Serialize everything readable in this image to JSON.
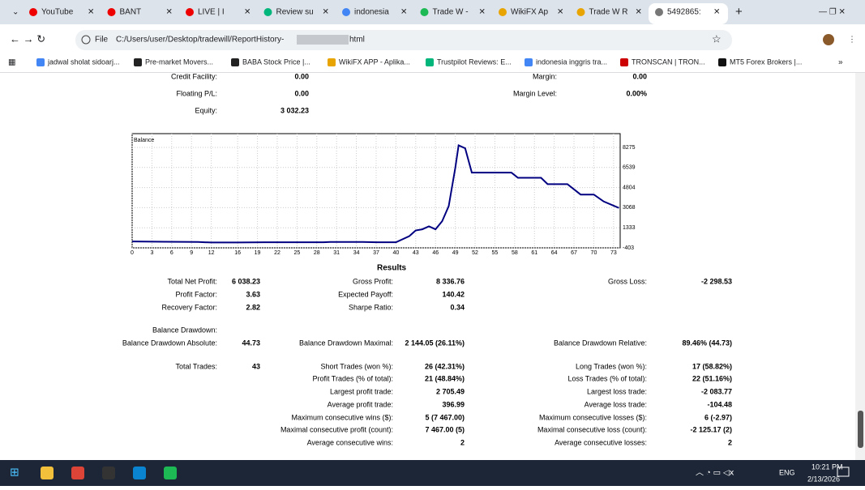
{
  "browser": {
    "tabs": [
      "YouTube",
      "BANT",
      "LIVE | I",
      "Review su",
      "indonesia",
      "Trade W -",
      "WikiFX Ap",
      "Trade W R",
      "5492865: "
    ],
    "address": {
      "scheme": "File",
      "path": "C:/Users/user/Desktop/tradewill/ReportHistory-",
      "suffix": "html"
    },
    "bookmarks": [
      "jadwal sholat sidoarj...",
      "Pre-market Movers...",
      "BABA Stock Price |...",
      "WikiFX APP - Aplika...",
      "Trustpilot Reviews: E...",
      "indonesia inggris tra...",
      "TRONSCAN | TRON...",
      "MT5 Forex Brokers |..."
    ]
  },
  "summary": [
    {
      "left": {
        "label": "Credit Facility:",
        "value": "0.00"
      },
      "right": {
        "label": "Margin:",
        "value": "0.00"
      }
    },
    {
      "left": {
        "label": "Floating P/L:",
        "value": "0.00"
      },
      "right": {
        "label": "Margin Level:",
        "value": "0.00%"
      }
    },
    {
      "left": {
        "label": "Equity:",
        "value": "3 032.23"
      }
    }
  ],
  "chart_data": {
    "type": "line",
    "title": "Balance",
    "color": "#000080",
    "grid": true,
    "x": [
      0,
      5,
      10,
      12,
      16,
      20,
      25,
      29,
      30,
      35,
      37,
      40,
      42,
      43,
      44,
      45,
      46,
      47,
      48,
      49,
      49.5,
      50.5,
      51.5,
      57.5,
      58.5,
      62,
      63,
      66,
      68,
      70,
      71.5,
      73.8
    ],
    "values": [
      150,
      120,
      100,
      60,
      60,
      80,
      80,
      80,
      100,
      100,
      80,
      80,
      600,
      1100,
      1200,
      1450,
      1200,
      1900,
      3200,
      6500,
      8450,
      8200,
      6100,
      6100,
      5650,
      5650,
      5100,
      5100,
      4200,
      4200,
      3600,
      3050
    ],
    "xlim": [
      0,
      74
    ],
    "xticks": [
      0,
      3,
      6,
      9,
      12,
      16,
      19,
      22,
      25,
      28,
      31,
      34,
      37,
      40,
      43,
      46,
      49,
      52,
      55,
      58,
      61,
      64,
      67,
      70,
      73
    ],
    "ylim": [
      -403,
      9465
    ],
    "yticks": [
      8275,
      6539,
      4804,
      3068,
      1333,
      -403
    ]
  },
  "results_title": "Results",
  "results": [
    {
      "left": {
        "label": "Total Net Profit:",
        "value": "6 038.23"
      },
      "middle": {
        "label": "Gross Profit:",
        "value": "8 336.76"
      },
      "right": {
        "label": "Gross Loss:",
        "value": "-2 298.53"
      }
    },
    {
      "left": {
        "label": "Profit Factor:",
        "value": "3.63"
      },
      "middle": {
        "label": "Expected Payoff:",
        "value": "140.42"
      }
    },
    {
      "left": {
        "label": "Recovery Factor:",
        "value": "2.82"
      },
      "middle": {
        "label": "Sharpe Ratio:",
        "value": "0.34"
      }
    },
    {
      "left": {
        "label": "Balance Drawdown:"
      }
    },
    {
      "left": {
        "label": "Balance Drawdown Absolute:",
        "value": "44.73"
      },
      "middle": {
        "label": "Balance Drawdown Maximal:",
        "value": "2 144.05 (26.11%)"
      },
      "right": {
        "label": "Balance Drawdown Relative:",
        "value": "89.46% (44.73)"
      }
    },
    {
      "left": {
        "label": "Total Trades:",
        "value": "43"
      },
      "middle": {
        "label": "Short Trades (won %):",
        "value": "26 (42.31%)"
      },
      "right": {
        "label": "Long Trades (won %):",
        "value": "17 (58.82%)"
      }
    },
    {
      "middle": {
        "label": "Profit Trades (% of total):",
        "value": "21 (48.84%)"
      },
      "right": {
        "label": "Loss Trades (% of total):",
        "value": "22 (51.16%)"
      }
    },
    {
      "middle": {
        "label": "Largest profit trade:",
        "value": "2 705.49"
      },
      "right": {
        "label": "Largest loss trade:",
        "value": "-2 083.77"
      }
    },
    {
      "middle": {
        "label": "Average profit trade:",
        "value": "396.99"
      },
      "right": {
        "label": "Average loss trade:",
        "value": "-104.48"
      }
    },
    {
      "middle": {
        "label": "Maximum consecutive wins ($):",
        "value": "5 (7 467.00)"
      },
      "right": {
        "label": "Maximum consecutive losses ($):",
        "value": "6 (-2.97)"
      }
    },
    {
      "middle": {
        "label": "Maximal consecutive profit (count):",
        "value": "7 467.00 (5)"
      },
      "right": {
        "label": "Maximal consecutive loss (count):",
        "value": "-2 125.17 (2)"
      }
    },
    {
      "middle": {
        "label": "Average consecutive wins:",
        "value": "2"
      },
      "right": {
        "label": "Average consecutive losses:",
        "value": "2"
      }
    }
  ],
  "taskbar": {
    "language": "ENG",
    "time": "10:21 PM",
    "date": "2/13/2026"
  }
}
